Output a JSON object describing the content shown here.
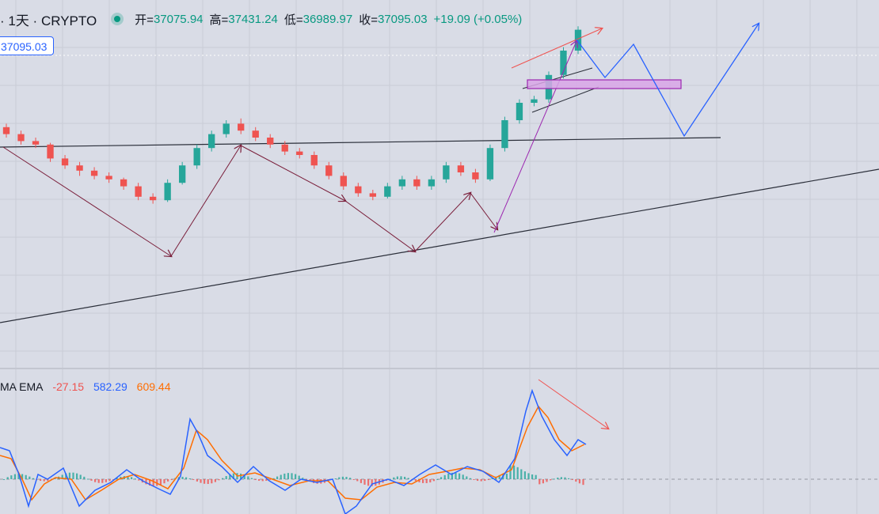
{
  "header": {
    "symbol": "· 1天 · CRYPTO",
    "open_label": "开=",
    "open": "37075.94",
    "high_label": "高=",
    "high": "37431.24",
    "low_label": "低=",
    "low": "36989.97",
    "close_label": "收=",
    "close": "37095.03",
    "change": "+19.09 (+0.05%)"
  },
  "price_label": "37095.03",
  "macd": {
    "label": "MA EMA",
    "v1": "-27.15",
    "v2": "582.29",
    "v3": "609.44"
  },
  "colors": {
    "background": "#d9dce6",
    "up": "#26a69a",
    "down": "#ef5350",
    "macd_line": "#2962ff",
    "signal_line": "#ff6d00",
    "projection": "#2962ff",
    "box_fill": "#d8a6e6",
    "box_stroke": "#9c27b0"
  },
  "chart_data": {
    "type": "candlestick",
    "series": [
      {
        "name": "price",
        "values": [
          [
            36800,
            36600,
            36900,
            36500
          ],
          [
            36600,
            36400,
            36700,
            36300
          ],
          [
            36400,
            36300,
            36500,
            36200
          ],
          [
            36300,
            35900,
            36350,
            35800
          ],
          [
            35900,
            35700,
            36000,
            35600
          ],
          [
            35700,
            35550,
            35800,
            35400
          ],
          [
            35550,
            35400,
            35650,
            35300
          ],
          [
            35400,
            35300,
            35500,
            35200
          ],
          [
            35300,
            35100,
            35350,
            35000
          ],
          [
            35100,
            34800,
            35200,
            34700
          ],
          [
            34800,
            34700,
            34900,
            34600
          ],
          [
            34700,
            35200,
            35300,
            34650
          ],
          [
            35200,
            35700,
            35800,
            35150
          ],
          [
            35700,
            36200,
            36300,
            35600
          ],
          [
            36200,
            36600,
            36700,
            36100
          ],
          [
            36600,
            36900,
            37000,
            36500
          ],
          [
            36900,
            36700,
            37050,
            36600
          ],
          [
            36700,
            36500,
            36800,
            36400
          ],
          [
            36500,
            36300,
            36600,
            36200
          ],
          [
            36300,
            36100,
            36400,
            36000
          ],
          [
            36100,
            36000,
            36200,
            35900
          ],
          [
            36000,
            35700,
            36100,
            35600
          ],
          [
            35700,
            35400,
            35800,
            35300
          ],
          [
            35400,
            35100,
            35500,
            35000
          ],
          [
            35100,
            34900,
            35200,
            34800
          ],
          [
            34900,
            34800,
            35000,
            34700
          ],
          [
            34800,
            35100,
            35200,
            34750
          ],
          [
            35100,
            35300,
            35400,
            35000
          ],
          [
            35300,
            35100,
            35400,
            35000
          ],
          [
            35100,
            35300,
            35400,
            35000
          ],
          [
            35300,
            35700,
            35800,
            35200
          ],
          [
            35700,
            35500,
            35800,
            35400
          ],
          [
            35500,
            35300,
            35600,
            35200
          ],
          [
            35300,
            36200,
            36300,
            35250
          ],
          [
            36200,
            37000,
            37100,
            36100
          ],
          [
            37000,
            37500,
            37600,
            36900
          ],
          [
            37500,
            37600,
            37700,
            37400
          ],
          [
            37600,
            38300,
            38400,
            37500
          ],
          [
            38300,
            39000,
            39100,
            38200
          ],
          [
            39000,
            39600,
            39700,
            38900
          ]
        ],
        "value_order": [
          "open",
          "close",
          "high",
          "low"
        ]
      }
    ],
    "macd": {
      "name": "MA EMA",
      "values_shown": [
        -27.15,
        582.29,
        609.44
      ]
    }
  }
}
